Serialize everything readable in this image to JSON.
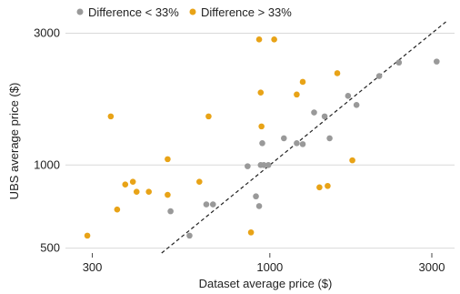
{
  "chart_data": {
    "type": "scatter",
    "xlabel": "Dataset average price ($)",
    "ylabel": "UBS average price ($)",
    "x_scale": "log",
    "y_scale": "log",
    "xlim": [
      250,
      3500
    ],
    "ylim": [
      480,
      3300
    ],
    "x_ticks": [
      300,
      1000,
      3000
    ],
    "x_tick_labels": [
      "300",
      "1000",
      "3000"
    ],
    "y_ticks": [
      500,
      1000,
      3000
    ],
    "y_tick_labels": [
      "500",
      "1000",
      "3000"
    ],
    "grid": "horizontal",
    "reference_line": "y = x (dashed)",
    "legend_position": "top",
    "colors": {
      "gray": "#999999",
      "orange": "#E8A317"
    },
    "series": [
      {
        "name": "Difference < 33%",
        "color": "#999999",
        "points": [
          [
            510,
            680
          ],
          [
            580,
            555
          ],
          [
            650,
            720
          ],
          [
            680,
            720
          ],
          [
            860,
            990
          ],
          [
            910,
            770
          ],
          [
            930,
            710
          ],
          [
            940,
            1000
          ],
          [
            950,
            1200
          ],
          [
            960,
            1000
          ],
          [
            990,
            1000
          ],
          [
            1100,
            1250
          ],
          [
            1200,
            1200
          ],
          [
            1250,
            1190
          ],
          [
            1350,
            1550
          ],
          [
            1450,
            1500
          ],
          [
            1500,
            1250
          ],
          [
            1700,
            1780
          ],
          [
            1800,
            1650
          ],
          [
            2100,
            2100
          ],
          [
            2400,
            2350
          ],
          [
            3100,
            2370
          ]
        ]
      },
      {
        "name": "Difference > 33%",
        "color": "#E8A317",
        "points": [
          [
            290,
            555
          ],
          [
            340,
            1500
          ],
          [
            355,
            690
          ],
          [
            375,
            850
          ],
          [
            395,
            870
          ],
          [
            405,
            800
          ],
          [
            440,
            800
          ],
          [
            500,
            780
          ],
          [
            500,
            1050
          ],
          [
            620,
            870
          ],
          [
            660,
            1500
          ],
          [
            880,
            570
          ],
          [
            930,
            2850
          ],
          [
            940,
            1830
          ],
          [
            945,
            1380
          ],
          [
            1030,
            2850
          ],
          [
            1200,
            1800
          ],
          [
            1250,
            2000
          ],
          [
            1400,
            830
          ],
          [
            1480,
            840
          ],
          [
            1580,
            2150
          ],
          [
            1750,
            1040
          ]
        ]
      }
    ]
  }
}
